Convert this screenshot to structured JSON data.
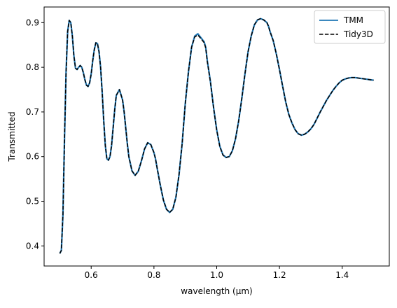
{
  "chart_data": {
    "type": "line",
    "xlabel": "wavelength (μm)",
    "ylabel": "Transmitted",
    "xlim": [
      0.45,
      1.55
    ],
    "ylim": [
      0.355,
      0.935
    ],
    "x_ticks": [
      "0.6",
      "0.8",
      "1.0",
      "1.2",
      "1.4"
    ],
    "y_ticks": [
      "0.4",
      "0.5",
      "0.6",
      "0.7",
      "0.8",
      "0.9"
    ],
    "grid": false,
    "legend": "top-right",
    "series": [
      {
        "name": "TMM",
        "color": "#1f77b4",
        "style": "solid",
        "x": [
          0.5,
          0.505,
          0.51,
          0.515,
          0.52,
          0.525,
          0.53,
          0.535,
          0.54,
          0.545,
          0.55,
          0.555,
          0.56,
          0.565,
          0.57,
          0.575,
          0.58,
          0.585,
          0.59,
          0.595,
          0.6,
          0.605,
          0.61,
          0.615,
          0.62,
          0.625,
          0.63,
          0.635,
          0.64,
          0.645,
          0.65,
          0.655,
          0.66,
          0.665,
          0.67,
          0.675,
          0.68,
          0.69,
          0.7,
          0.705,
          0.71,
          0.715,
          0.72,
          0.73,
          0.74,
          0.75,
          0.76,
          0.77,
          0.78,
          0.79,
          0.8,
          0.805,
          0.81,
          0.82,
          0.83,
          0.84,
          0.85,
          0.86,
          0.87,
          0.88,
          0.89,
          0.9,
          0.91,
          0.92,
          0.93,
          0.94,
          0.95,
          0.96,
          0.965,
          0.97,
          0.98,
          0.99,
          1.0,
          1.01,
          1.02,
          1.03,
          1.04,
          1.05,
          1.06,
          1.07,
          1.08,
          1.09,
          1.1,
          1.11,
          1.12,
          1.13,
          1.14,
          1.15,
          1.16,
          1.165,
          1.17,
          1.18,
          1.19,
          1.2,
          1.21,
          1.22,
          1.23,
          1.24,
          1.25,
          1.26,
          1.27,
          1.28,
          1.29,
          1.3,
          1.31,
          1.32,
          1.33,
          1.34,
          1.35,
          1.36,
          1.37,
          1.38,
          1.39,
          1.4,
          1.41,
          1.42,
          1.43,
          1.44,
          1.45,
          1.46,
          1.47,
          1.48,
          1.49,
          1.5
        ],
        "y": [
          0.383,
          0.39,
          0.47,
          0.64,
          0.79,
          0.88,
          0.905,
          0.9,
          0.87,
          0.825,
          0.798,
          0.795,
          0.8,
          0.804,
          0.8,
          0.788,
          0.772,
          0.76,
          0.757,
          0.765,
          0.785,
          0.815,
          0.84,
          0.855,
          0.853,
          0.835,
          0.8,
          0.745,
          0.68,
          0.625,
          0.595,
          0.592,
          0.6,
          0.625,
          0.665,
          0.705,
          0.737,
          0.75,
          0.727,
          0.7,
          0.665,
          0.63,
          0.6,
          0.568,
          0.558,
          0.567,
          0.59,
          0.617,
          0.631,
          0.627,
          0.609,
          0.595,
          0.575,
          0.537,
          0.503,
          0.482,
          0.475,
          0.482,
          0.509,
          0.56,
          0.63,
          0.72,
          0.79,
          0.845,
          0.87,
          0.875,
          0.866,
          0.857,
          0.845,
          0.815,
          0.768,
          0.71,
          0.66,
          0.623,
          0.604,
          0.598,
          0.6,
          0.613,
          0.64,
          0.68,
          0.73,
          0.785,
          0.835,
          0.87,
          0.895,
          0.906,
          0.909,
          0.906,
          0.9,
          0.892,
          0.88,
          0.86,
          0.83,
          0.795,
          0.758,
          0.722,
          0.694,
          0.675,
          0.66,
          0.651,
          0.648,
          0.65,
          0.655,
          0.662,
          0.672,
          0.686,
          0.7,
          0.713,
          0.726,
          0.737,
          0.748,
          0.757,
          0.765,
          0.771,
          0.774,
          0.776,
          0.777,
          0.777,
          0.776,
          0.775,
          0.774,
          0.773,
          0.772,
          0.771
        ]
      },
      {
        "name": "Tidy3D",
        "color": "#000000",
        "style": "dashed",
        "x": [
          0.5,
          0.505,
          0.51,
          0.515,
          0.52,
          0.525,
          0.53,
          0.535,
          0.54,
          0.545,
          0.55,
          0.555,
          0.56,
          0.565,
          0.57,
          0.575,
          0.58,
          0.585,
          0.59,
          0.595,
          0.6,
          0.605,
          0.61,
          0.615,
          0.62,
          0.625,
          0.63,
          0.635,
          0.64,
          0.645,
          0.65,
          0.655,
          0.66,
          0.665,
          0.67,
          0.675,
          0.68,
          0.69,
          0.7,
          0.705,
          0.71,
          0.715,
          0.72,
          0.73,
          0.74,
          0.75,
          0.76,
          0.77,
          0.78,
          0.79,
          0.8,
          0.805,
          0.81,
          0.82,
          0.83,
          0.84,
          0.85,
          0.86,
          0.87,
          0.88,
          0.89,
          0.9,
          0.91,
          0.92,
          0.93,
          0.94,
          0.95,
          0.96,
          0.965,
          0.97,
          0.98,
          0.99,
          1.0,
          1.01,
          1.02,
          1.03,
          1.04,
          1.05,
          1.06,
          1.07,
          1.08,
          1.09,
          1.1,
          1.11,
          1.12,
          1.13,
          1.14,
          1.15,
          1.16,
          1.165,
          1.17,
          1.18,
          1.19,
          1.2,
          1.21,
          1.22,
          1.23,
          1.24,
          1.25,
          1.26,
          1.27,
          1.28,
          1.29,
          1.3,
          1.31,
          1.32,
          1.33,
          1.34,
          1.35,
          1.36,
          1.37,
          1.38,
          1.39,
          1.4,
          1.41,
          1.42,
          1.43,
          1.44,
          1.45,
          1.46,
          1.47,
          1.48,
          1.49,
          1.5
        ],
        "y": [
          0.383,
          0.39,
          0.47,
          0.64,
          0.79,
          0.88,
          0.905,
          0.9,
          0.87,
          0.825,
          0.798,
          0.795,
          0.8,
          0.804,
          0.8,
          0.788,
          0.772,
          0.76,
          0.757,
          0.765,
          0.785,
          0.815,
          0.84,
          0.855,
          0.853,
          0.835,
          0.8,
          0.745,
          0.68,
          0.625,
          0.595,
          0.592,
          0.6,
          0.625,
          0.665,
          0.705,
          0.737,
          0.75,
          0.727,
          0.7,
          0.665,
          0.63,
          0.6,
          0.568,
          0.558,
          0.567,
          0.59,
          0.617,
          0.631,
          0.627,
          0.609,
          0.595,
          0.575,
          0.537,
          0.503,
          0.482,
          0.475,
          0.482,
          0.509,
          0.56,
          0.63,
          0.72,
          0.79,
          0.845,
          0.868,
          0.872,
          0.864,
          0.855,
          0.843,
          0.813,
          0.767,
          0.709,
          0.659,
          0.622,
          0.603,
          0.598,
          0.6,
          0.613,
          0.64,
          0.68,
          0.73,
          0.785,
          0.835,
          0.87,
          0.895,
          0.906,
          0.909,
          0.906,
          0.9,
          0.892,
          0.88,
          0.86,
          0.83,
          0.795,
          0.758,
          0.722,
          0.694,
          0.675,
          0.66,
          0.651,
          0.648,
          0.65,
          0.655,
          0.662,
          0.672,
          0.686,
          0.7,
          0.713,
          0.726,
          0.737,
          0.748,
          0.757,
          0.765,
          0.771,
          0.774,
          0.776,
          0.777,
          0.777,
          0.776,
          0.775,
          0.774,
          0.773,
          0.772,
          0.771
        ]
      }
    ]
  }
}
